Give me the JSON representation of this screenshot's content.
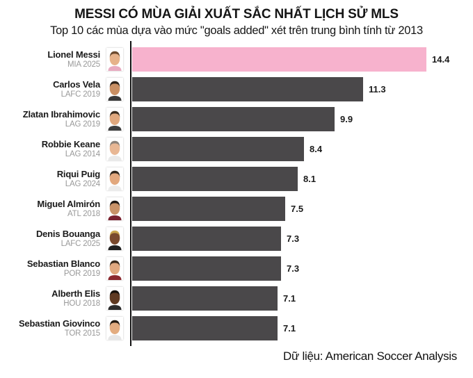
{
  "header": {
    "title": "MESSI CÓ MÙA GIẢI XUẤT SẮC NHẤT LỊCH SỬ MLS",
    "subtitle": "Top 10 các mùa dựa vào mức \"goals added\" xét trên trung bình tính từ 2013"
  },
  "footer": {
    "source": "Dữ liệu: American Soccer Analysis"
  },
  "colors": {
    "highlight_bar": "#f7b2cd",
    "bar": "#4a484a",
    "axis": "#111111",
    "team_label": "#999999",
    "value_label": "#1a1a1a"
  },
  "chart_data": {
    "type": "bar",
    "orientation": "horizontal",
    "title": "MESSI CÓ MÙA GIẢI XUẤT SẮC NHẤT LỊCH SỬ MLS",
    "subtitle": "Top 10 các mùa dựa vào mức \"goals added\" xét trên trung bình tính từ 2013",
    "xlabel": "",
    "ylabel": "",
    "xlim": [
      0,
      14.4
    ],
    "grid": false,
    "legend": false,
    "value_labels": "end-of-bar, one decimal",
    "source": "Dữ liệu: American Soccer Analysis",
    "rows": [
      {
        "name": "Lionel Messi",
        "team": "MIA 2025",
        "value": 14.4,
        "highlight": true,
        "avatar": {
          "skin": "#e6b28a",
          "hair": "#6b4a2e",
          "shirt": "#e8aac0"
        }
      },
      {
        "name": "Carlos Vela",
        "team": "LAFC 2019",
        "value": 11.3,
        "highlight": false,
        "avatar": {
          "skin": "#c98f63",
          "hair": "#2e2218",
          "shirt": "#3a3a3a"
        }
      },
      {
        "name": "Zlatan Ibrahimovic",
        "team": "LAG 2019",
        "value": 9.9,
        "highlight": false,
        "avatar": {
          "skin": "#e0a87e",
          "hair": "#3a2c1e",
          "shirt": "#3f3f3f"
        }
      },
      {
        "name": "Robbie Keane",
        "team": "LAG 2014",
        "value": 8.4,
        "highlight": false,
        "avatar": {
          "skin": "#e8b794",
          "hair": "#8d837a",
          "shirt": "#e9e9e9"
        }
      },
      {
        "name": "Riqui Puig",
        "team": "LAG 2024",
        "value": 8.1,
        "highlight": false,
        "avatar": {
          "skin": "#e2a87e",
          "hair": "#2f261c",
          "shirt": "#ececec"
        }
      },
      {
        "name": "Miguel Almirón",
        "team": "ATL 2018",
        "value": 7.5,
        "highlight": false,
        "avatar": {
          "skin": "#c89268",
          "hair": "#1e1712",
          "shirt": "#7a2230"
        }
      },
      {
        "name": "Denis Bouanga",
        "team": "LAFC 2025",
        "value": 7.3,
        "highlight": false,
        "avatar": {
          "skin": "#7a4a2e",
          "hair": "#c9a54e",
          "shirt": "#222222"
        }
      },
      {
        "name": "Sebastian Blanco",
        "team": "POR 2019",
        "value": 7.3,
        "highlight": false,
        "avatar": {
          "skin": "#e0a87f",
          "hair": "#3a2a1c",
          "shirt": "#8c2a30"
        }
      },
      {
        "name": "Alberth Elis",
        "team": "HOU 2018",
        "value": 7.1,
        "highlight": false,
        "avatar": {
          "skin": "#5f3a22",
          "hair": "#16100a",
          "shirt": "#2c2c2c"
        }
      },
      {
        "name": "Sebastian Giovinco",
        "team": "TOR 2015",
        "value": 7.1,
        "highlight": false,
        "avatar": {
          "skin": "#e3ac80",
          "hair": "#241a10",
          "shirt": "#e6e6e6"
        }
      }
    ]
  }
}
